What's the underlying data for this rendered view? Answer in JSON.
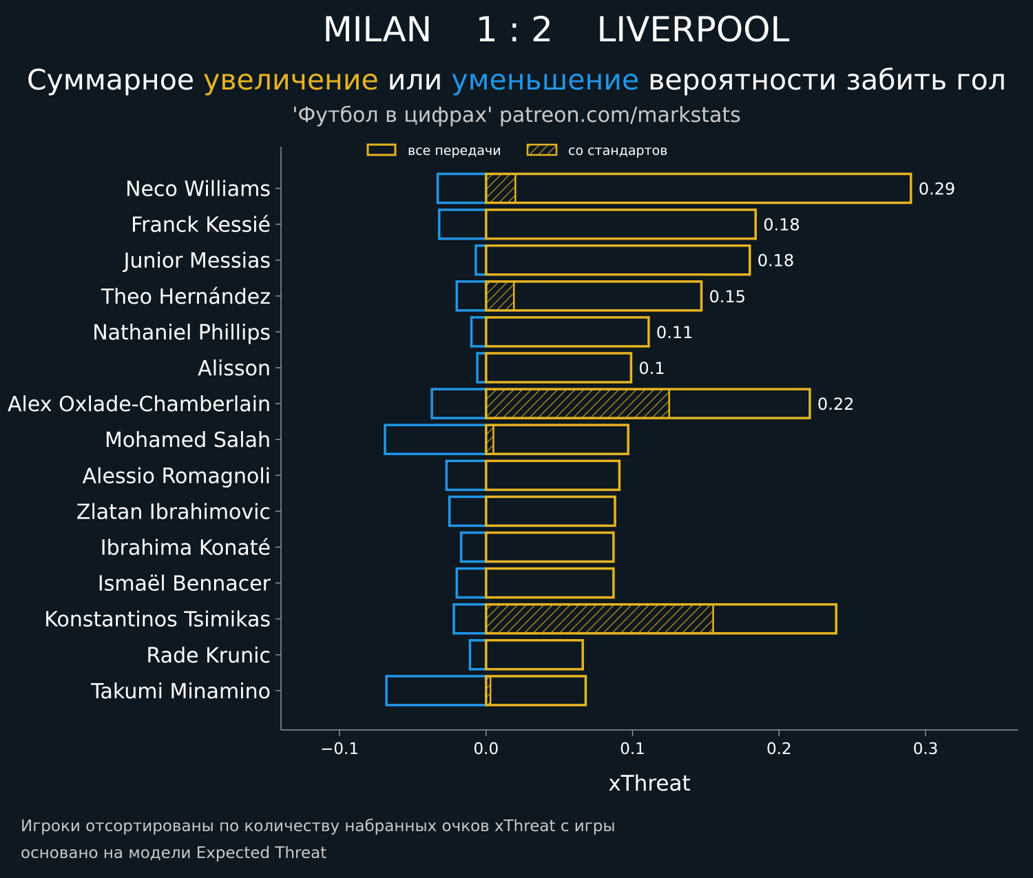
{
  "header": {
    "home_team": "MILAN",
    "score": "1 : 2",
    "away_team": "LIVERPOOL",
    "subtitle_parts": [
      "Суммарное ",
      "увеличение",
      " или ",
      "уменьшение",
      " вероятности забить гол"
    ],
    "source": "'Футбол в цифрах' patreon.com/markstats"
  },
  "footer": {
    "line1": "Игроки отсортированы по количеству набранных очков xThreat с игры",
    "line2": "основано на модели Expected Threat"
  },
  "colors": {
    "background": "#0e1820",
    "increase": "#e6b422",
    "decrease": "#2196e8",
    "axis": "#8a9499",
    "text": "#ffffff"
  },
  "chart_data": {
    "type": "bar",
    "orientation": "horizontal",
    "xlabel": "xThreat",
    "xlim": [
      -0.14,
      0.363
    ],
    "xticks": [
      -0.1,
      0.0,
      0.1,
      0.2,
      0.3
    ],
    "xtick_labels": [
      "−0.1",
      "0.0",
      "0.1",
      "0.2",
      "0.3"
    ],
    "grid": false,
    "legend_position": "top-left",
    "legend": [
      "все передачи",
      "со стандартов"
    ],
    "categories": [
      "Neco Williams",
      "Franck Kessié",
      "Junior Messias",
      "Theo Hernández",
      "Nathaniel Phillips",
      "Alisson",
      "Alex Oxlade-Chamberlain",
      "Mohamed Salah",
      "Alessio Romagnoli",
      "Zlatan Ibrahimovic",
      "Ibrahima Konaté",
      "Ismaël Bennacer",
      "Konstantinos Tsimikas",
      "Rade Krunic",
      "Takumi Minamino"
    ],
    "series": [
      {
        "name": "все передачи",
        "values": [
          0.29,
          0.184,
          0.18,
          0.147,
          0.111,
          0.099,
          0.221,
          0.097,
          0.091,
          0.088,
          0.087,
          0.087,
          0.239,
          0.066,
          0.068
        ]
      },
      {
        "name": "со стандартов",
        "values": [
          0.02,
          0.0,
          0.0,
          0.019,
          0.0,
          0.0,
          0.125,
          0.005,
          0.0,
          0.0,
          0.0,
          0.0,
          0.155,
          0.0,
          0.003
        ]
      },
      {
        "values": [
          -0.033,
          -0.032,
          -0.007,
          -0.02,
          -0.01,
          -0.006,
          -0.037,
          -0.069,
          -0.027,
          -0.025,
          -0.017,
          -0.02,
          -0.022,
          -0.011,
          -0.068
        ]
      }
    ],
    "value_labels": [
      "0.29",
      "0.18",
      "0.18",
      "0.15",
      "0.11",
      "0.1",
      "0.22",
      "",
      "",
      "",
      "",
      "",
      "",
      "",
      ""
    ]
  }
}
